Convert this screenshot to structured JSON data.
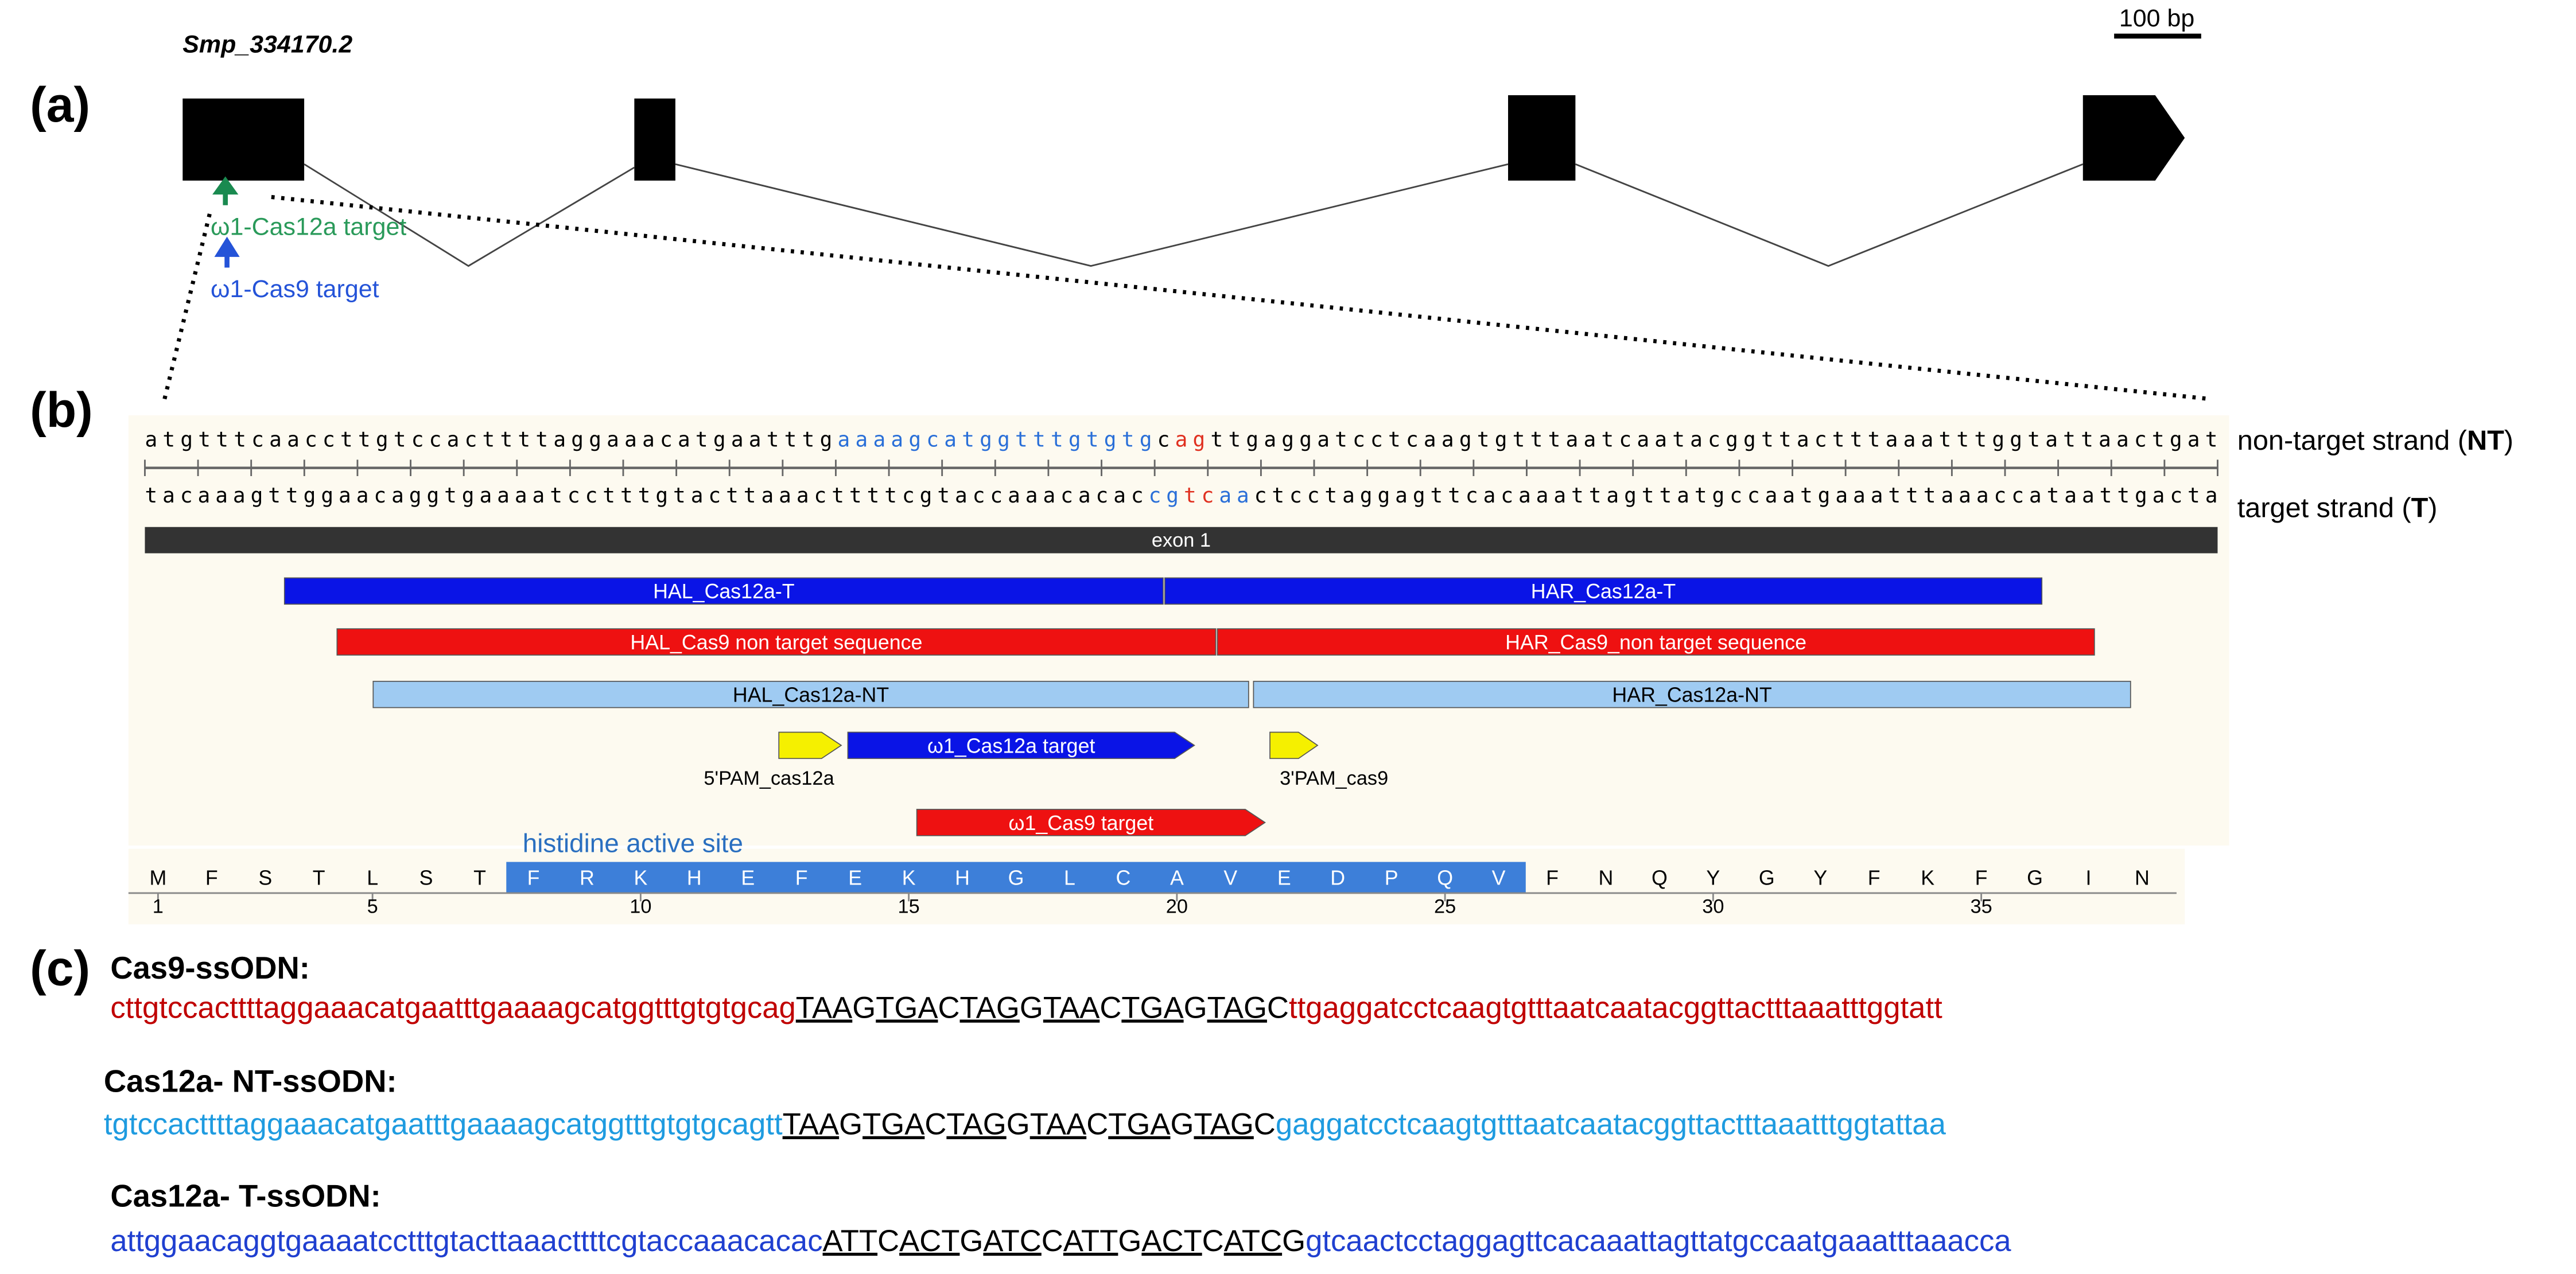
{
  "panel_a": {
    "label": "(a)",
    "gene": "Smp_334170.2",
    "scale_bar": "100 bp",
    "cas12a_target": "ω1-Cas12a target",
    "cas9_target": "ω1-Cas9 target"
  },
  "panel_b": {
    "label": "(b)",
    "non_target_strand": {
      "segments": [
        "atgtttcaaccttgtccacttttaggaaacatgaatttg",
        "aaaagcatggtttgtgtg",
        "c",
        "ag",
        "ttgaggatcctcaagtgtttaatcaatacggttactttaaatttggtattaactgat"
      ],
      "label": [
        "non-target strand (",
        "NT",
        ")"
      ]
    },
    "target_strand": {
      "segments": [
        "tacaaagttggaacaggtgaaaatcctttgtacttaaacttttcgtaccaaacacac",
        "cg",
        "tc",
        "aa",
        "ctcctaggagttcacaaattagttatgccaatgaaatttaaaccataattgacta"
      ],
      "label": [
        "target strand (",
        "T",
        ")"
      ]
    },
    "exon": "exon 1",
    "features": [
      "HAL_Cas12a-T",
      "HAR_Cas12a-T",
      "HAL_Cas9 non target sequence",
      "HAR_Cas9_non target sequence",
      "HAL_Cas12a-NT",
      "HAR_Cas12a-NT",
      "5'PAM_cas12a",
      "ω1_Cas12a target",
      "3'PAM_cas9",
      "ω1_Cas9 target"
    ],
    "active_site": "histidine active site",
    "residues": [
      "M",
      "F",
      "S",
      "T",
      "L",
      "S",
      "T",
      "F",
      "R",
      "K",
      "H",
      "E",
      "F",
      "E",
      "K",
      "H",
      "G",
      "L",
      "C",
      "A",
      "V",
      "E",
      "D",
      "P",
      "Q",
      "V",
      "F",
      "N",
      "Q",
      "Y",
      "G",
      "Y",
      "F",
      "K",
      "F",
      "G",
      "I",
      "N"
    ],
    "residue_numbers": [
      1,
      5,
      10,
      15,
      20,
      25,
      30,
      35
    ]
  },
  "panel_c": {
    "label": "(c)",
    "oligos": [
      {
        "name": "Cas9-ssODN:",
        "left": "cttgtccacttttaggaaacatgaatttgaaaagcatggtttgtgtgcag",
        "insert": [
          "TAA",
          "G",
          "TGA",
          "C",
          "TAG",
          "G",
          "TAA",
          "C",
          "TGA",
          "G",
          "TAG",
          "C"
        ],
        "right": "ttgaggatcctcaagtgtttaatcaatacggttactttaaatttggtatt"
      },
      {
        "name": "Cas12a- NT-ssODN:",
        "left": "tgtccacttttaggaaacatgaatttgaaaagcatggtttgtgtgcagtt",
        "insert": [
          "TAA",
          "G",
          "TGA",
          "C",
          "TAG",
          "G",
          "TAA",
          "C",
          "TGA",
          "G",
          "TAG",
          "C"
        ],
        "right": "gaggatcctcaagtgtttaatcaatacggttactttaaatttggtattaa"
      },
      {
        "name": "Cas12a- T-ssODN:",
        "left": "attggaacaggtgaaaatcctttgtacttaaacttttcgtaccaaacacac",
        "insert": [
          "ATT",
          "C",
          "ACT",
          "G",
          "ATC",
          "C",
          "ATT",
          "G",
          "ACT",
          "C",
          "ATC",
          "G"
        ],
        "right": "gtcaactcctaggagttcacaaattagttatgccaatgaaatttaaacca"
      }
    ]
  }
}
